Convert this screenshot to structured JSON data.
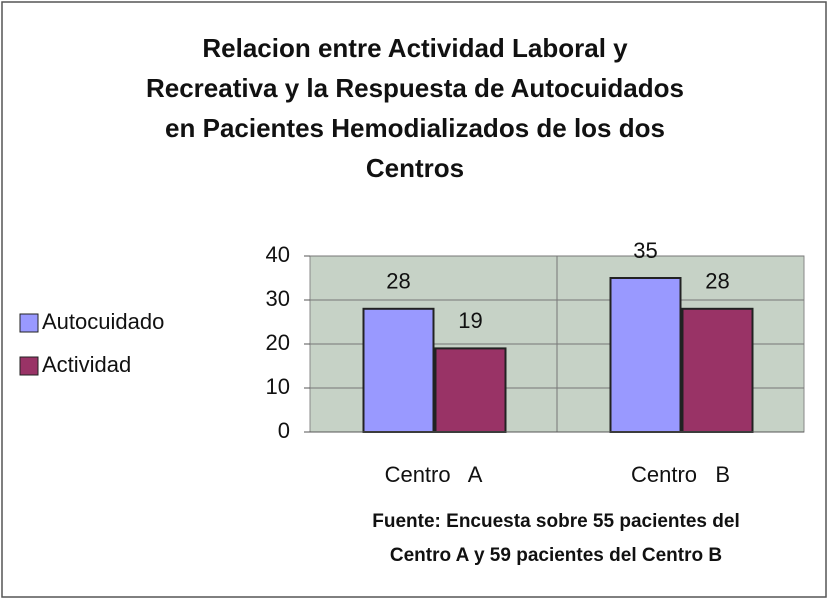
{
  "chart_data": {
    "type": "bar",
    "title": [
      "Relacion entre Actividad Laboral y",
      "Recreativa y la Respuesta de Autocuidados",
      "en Pacientes Hemodializados de los dos",
      "Centros"
    ],
    "categories": [
      "Centro   A",
      "Centro   B"
    ],
    "series": [
      {
        "name": "Autocuidado",
        "color": "#9999ff",
        "values": [
          28,
          35
        ]
      },
      {
        "name": "Actividad",
        "color": "#993366",
        "values": [
          19,
          28
        ]
      }
    ],
    "ylim": [
      0,
      40
    ],
    "yticks": [
      0,
      10,
      20,
      30,
      40
    ],
    "grid": true,
    "legend": "left",
    "note": [
      "Fuente: Encuesta sobre 55 pacientes del",
      "Centro A y 59 pacientes del Centro B"
    ]
  }
}
